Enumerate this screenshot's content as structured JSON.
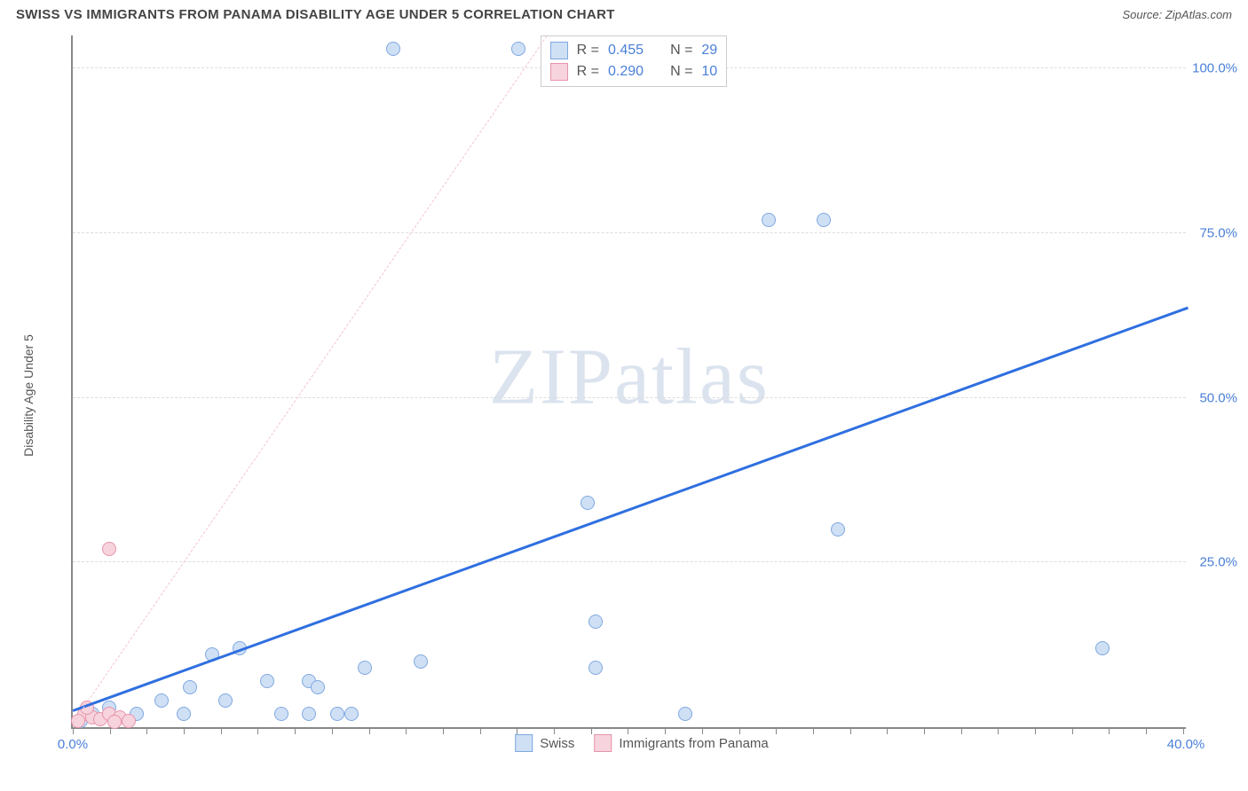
{
  "header": {
    "title": "SWISS VS IMMIGRANTS FROM PANAMA DISABILITY AGE UNDER 5 CORRELATION CHART",
    "source": "Source: ZipAtlas.com"
  },
  "watermark": {
    "part1": "ZIP",
    "part2": "atlas"
  },
  "chart": {
    "type": "scatter",
    "ylabel": "Disability Age Under 5",
    "background_color": "#ffffff",
    "grid_color": "#dddddd",
    "axis_color": "#888888",
    "xlim": [
      0,
      40
    ],
    "ylim": [
      0,
      105
    ],
    "x_ticks_minor_step": 1.33,
    "y_gridlines": [
      25,
      50,
      75,
      100
    ],
    "y_tick_labels": [
      "25.0%",
      "50.0%",
      "75.0%",
      "100.0%"
    ],
    "x_tick_labels": {
      "0": "0.0%",
      "40": "40.0%"
    },
    "series": [
      {
        "name": "Swiss",
        "marker_fill": "#cfe0f5",
        "marker_stroke": "#7fa8e0",
        "marker_size": 16,
        "line_color": "#2f6fe0",
        "line_style": "solid",
        "line_width": 2.5,
        "trend": {
          "x1": 0,
          "y1": 3,
          "x2": 40,
          "y2": 64
        },
        "r_value": "0.455",
        "n_value": "29",
        "points": [
          {
            "x": 11.5,
            "y": 103
          },
          {
            "x": 16.0,
            "y": 103
          },
          {
            "x": 25.0,
            "y": 77
          },
          {
            "x": 27.0,
            "y": 77
          },
          {
            "x": 18.5,
            "y": 34
          },
          {
            "x": 27.5,
            "y": 30
          },
          {
            "x": 18.8,
            "y": 16
          },
          {
            "x": 37.0,
            "y": 12
          },
          {
            "x": 12.5,
            "y": 10
          },
          {
            "x": 18.8,
            "y": 9
          },
          {
            "x": 10.5,
            "y": 9
          },
          {
            "x": 5.0,
            "y": 11
          },
          {
            "x": 6.0,
            "y": 12
          },
          {
            "x": 22.0,
            "y": 2
          },
          {
            "x": 8.5,
            "y": 2
          },
          {
            "x": 9.5,
            "y": 2
          },
          {
            "x": 10.0,
            "y": 2
          },
          {
            "x": 7.5,
            "y": 2
          },
          {
            "x": 7.0,
            "y": 7
          },
          {
            "x": 8.5,
            "y": 7
          },
          {
            "x": 8.8,
            "y": 6
          },
          {
            "x": 4.2,
            "y": 6
          },
          {
            "x": 5.5,
            "y": 4
          },
          {
            "x": 3.2,
            "y": 4
          },
          {
            "x": 4.0,
            "y": 2
          },
          {
            "x": 2.3,
            "y": 2
          },
          {
            "x": 1.3,
            "y": 3
          },
          {
            "x": 0.7,
            "y": 2
          },
          {
            "x": 0.3,
            "y": 1
          }
        ]
      },
      {
        "name": "Immigrants from Panama",
        "marker_fill": "#f7d4dd",
        "marker_stroke": "#e793aa",
        "marker_size": 16,
        "line_color": "#f4c3cf",
        "line_style": "dashed",
        "line_width": 1.5,
        "trend": {
          "x1": 0,
          "y1": 1,
          "x2": 17,
          "y2": 105
        },
        "r_value": "0.290",
        "n_value": "10",
        "points": [
          {
            "x": 1.3,
            "y": 27
          },
          {
            "x": 0.4,
            "y": 2
          },
          {
            "x": 0.7,
            "y": 1.5
          },
          {
            "x": 1.0,
            "y": 1.2
          },
          {
            "x": 1.3,
            "y": 2
          },
          {
            "x": 1.7,
            "y": 1.5
          },
          {
            "x": 0.2,
            "y": 1
          },
          {
            "x": 0.5,
            "y": 3
          },
          {
            "x": 2.0,
            "y": 1
          },
          {
            "x": 1.5,
            "y": 0.8
          }
        ]
      }
    ],
    "legend_top": {
      "r_label": "R =",
      "n_label": "N ="
    },
    "legend_bottom": {
      "label1": "Swiss",
      "label2": "Immigrants from Panama"
    }
  }
}
